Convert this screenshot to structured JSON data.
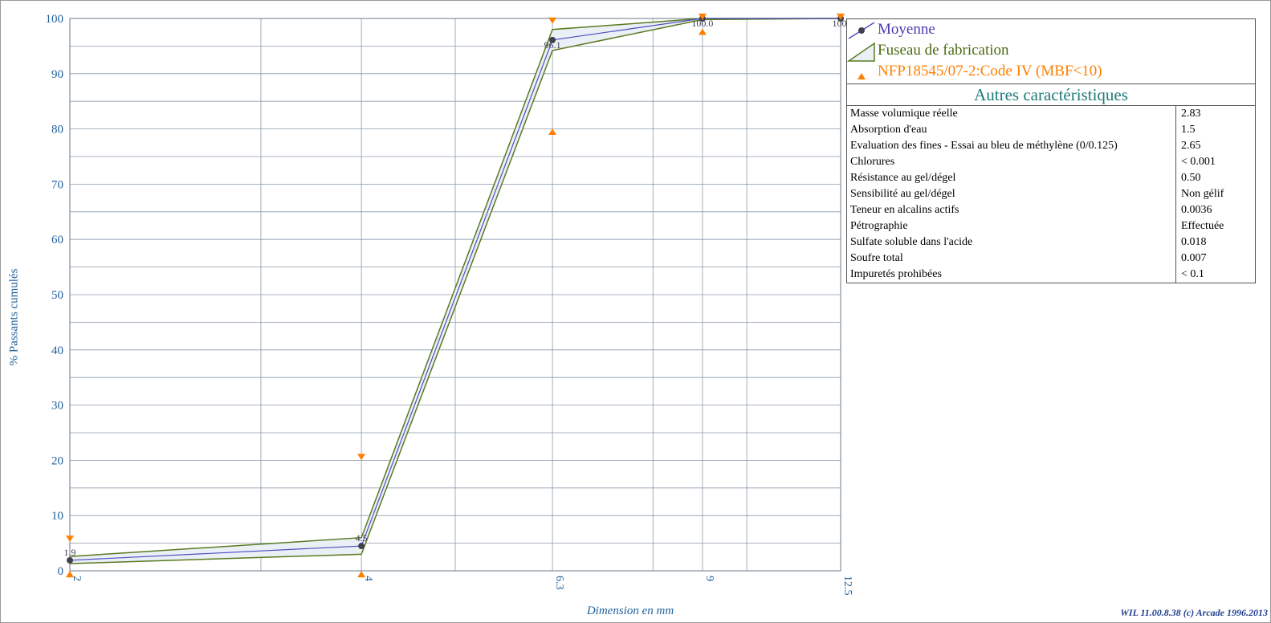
{
  "chart_data": {
    "type": "line",
    "xlabel": "Dimension en mm",
    "ylabel": "% Passants cumulés",
    "x_ticks": [
      "2",
      "4",
      "6.3",
      "9",
      "12.5"
    ],
    "y_ticks": [
      0,
      10,
      20,
      30,
      40,
      50,
      60,
      70,
      80,
      90,
      100
    ],
    "ylim": [
      0,
      100
    ],
    "x_scale": "log",
    "grid": true,
    "legend_position": "top-right",
    "series": [
      {
        "name": "Moyenne",
        "color": "#5050c0",
        "x": [
          2,
          4,
          6.3,
          9,
          12.5
        ],
        "values": [
          1.9,
          4.5,
          96.1,
          100.0,
          100.0
        ],
        "labels": [
          "1.9",
          "4.5",
          "96.1",
          "100.0",
          "100."
        ]
      },
      {
        "name": "Fuseau de fabrication",
        "color": "#5a7a20",
        "x": [
          2,
          4,
          6.3,
          9,
          12.5
        ],
        "upper": [
          2.6,
          6.0,
          98.0,
          100.0,
          100.0
        ],
        "lower": [
          1.3,
          3.0,
          94.2,
          99.8,
          100.0
        ]
      },
      {
        "name": "NFP18545/07-2:Code IV (MBF<10)",
        "color": "#ff8000",
        "x": [
          2,
          4,
          6.3,
          9,
          12.5
        ],
        "max": [
          5.8,
          20.6,
          99.6,
          100.3,
          100.3
        ],
        "min": [
          -0.6,
          -0.6,
          79.5,
          97.6,
          null
        ]
      }
    ]
  },
  "legend": {
    "items": [
      "Moyenne",
      "Fuseau de fabrication",
      "NFP18545/07-2:Code IV (MBF<10)"
    ]
  },
  "properties": {
    "title": "Autres caractéristiques",
    "rows": [
      {
        "label": "Masse volumique réelle",
        "value": "2.83"
      },
      {
        "label": "Absorption d'eau",
        "value": "1.5"
      },
      {
        "label": "Evaluation des fines - Essai au bleu de méthylène (0/0.125)",
        "value": "2.65"
      },
      {
        "label": "Chlorures",
        "value": "< 0.001"
      },
      {
        "label": "Résistance au gel/dégel",
        "value": "0.50"
      },
      {
        "label": "Sensibilité au gel/dégel",
        "value": "Non gélif"
      },
      {
        "label": "Teneur en alcalins actifs",
        "value": "0.0036"
      },
      {
        "label": "Pétrographie",
        "value": "Effectuée"
      },
      {
        "label": "Sulfate soluble dans l'acide",
        "value": "0.018"
      },
      {
        "label": "Soufre total",
        "value": "0.007"
      },
      {
        "label": "Impuretés prohibées",
        "value": "< 0.1"
      }
    ]
  },
  "footer": {
    "copyright": "WIL 11.00.8.38 (c) Arcade 1996.2013"
  },
  "colors": {
    "axis_text": "#1f5f9a",
    "grid": "#8a9aaa",
    "mean": "#5050c0",
    "envelope": "#5a7a20",
    "envelope_fill": "#eaf0f6",
    "spec": "#ff8000",
    "table_title": "#1e7a7a"
  }
}
